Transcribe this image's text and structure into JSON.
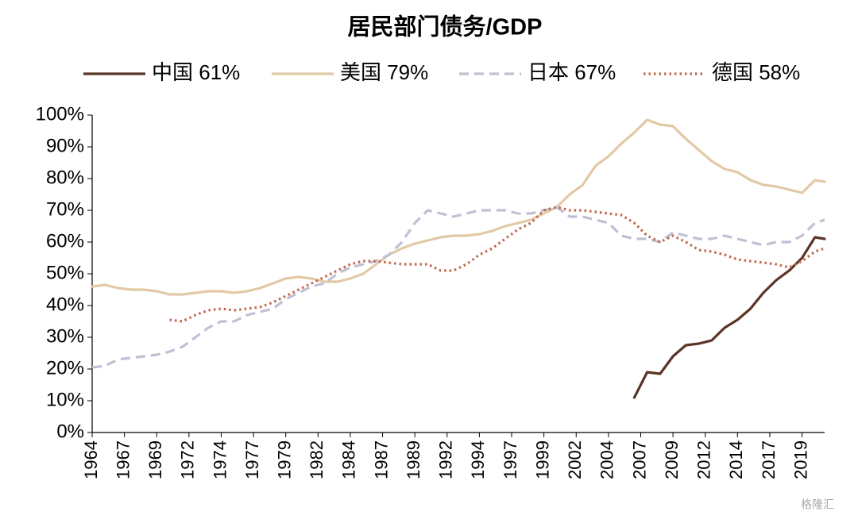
{
  "chart_data": {
    "type": "line",
    "title": "居民部门债务/GDP",
    "x": [
      1964,
      1965,
      1966,
      1967,
      1968,
      1969,
      1970,
      1971,
      1972,
      1973,
      1974,
      1975,
      1976,
      1977,
      1978,
      1979,
      1980,
      1981,
      1982,
      1983,
      1984,
      1985,
      1986,
      1987,
      1988,
      1989,
      1990,
      1991,
      1992,
      1993,
      1994,
      1995,
      1996,
      1997,
      1998,
      1999,
      2000,
      2001,
      2002,
      2003,
      2004,
      2005,
      2006,
      2007,
      2008,
      2009,
      2010,
      2011,
      2012,
      2013,
      2014,
      2015,
      2016,
      2017,
      2018,
      2019,
      2020,
      2020.75
    ],
    "series": [
      {
        "name": "中国  61%",
        "color": "#5b3428",
        "dash": "solid",
        "values": [
          null,
          null,
          null,
          null,
          null,
          null,
          null,
          null,
          null,
          null,
          null,
          null,
          null,
          null,
          null,
          null,
          null,
          null,
          null,
          null,
          null,
          null,
          null,
          null,
          null,
          null,
          null,
          null,
          null,
          null,
          null,
          null,
          null,
          null,
          null,
          null,
          null,
          null,
          null,
          null,
          null,
          null,
          11,
          19,
          18.5,
          24,
          27.5,
          28,
          29,
          33,
          35.5,
          39,
          44,
          48,
          51,
          55,
          61.5,
          61
        ]
      },
      {
        "name": "美国  79%",
        "color": "#e2c9a6",
        "dash": "solid",
        "values": [
          46,
          46.5,
          45.5,
          45,
          45,
          44.5,
          43.5,
          43.5,
          44,
          44.5,
          44.5,
          44,
          44.5,
          45.5,
          47,
          48.5,
          49,
          48.5,
          47.5,
          47.5,
          48.5,
          50,
          53,
          56,
          58,
          59.5,
          60.5,
          61.5,
          62,
          62,
          62.5,
          63.5,
          65,
          66,
          67,
          69,
          71,
          75,
          78,
          84,
          87,
          91,
          94.5,
          98.5,
          97,
          96.5,
          92.5,
          89,
          85.5,
          83,
          82,
          79.5,
          78,
          77.5,
          76.5,
          75.5,
          79.5,
          79
        ]
      },
      {
        "name": "日本  67%",
        "color": "#c0c0d4",
        "dash": "dashed",
        "values": [
          20.5,
          21,
          23,
          23.5,
          24,
          24.5,
          25.5,
          27,
          30,
          33,
          35,
          35,
          37,
          38,
          39,
          42,
          44,
          46,
          47,
          50,
          52,
          53,
          54,
          56,
          60,
          66,
          70,
          69,
          68,
          69,
          70,
          70,
          70,
          69,
          69,
          70,
          71,
          68,
          68,
          67,
          66,
          62,
          61,
          61,
          60,
          63,
          62,
          61,
          61,
          62,
          61,
          60,
          59,
          60,
          60,
          62,
          66,
          67
        ]
      },
      {
        "name": "德国  58%",
        "color": "#c0674d",
        "dash": "dotted",
        "values": [
          null,
          null,
          null,
          null,
          null,
          null,
          35.5,
          35,
          37,
          38.5,
          39,
          38.5,
          39,
          39.5,
          41,
          43,
          45,
          47,
          49,
          51,
          53,
          54,
          54,
          53.5,
          53,
          53,
          53,
          51,
          51,
          53,
          56,
          58,
          61,
          64,
          66,
          70,
          71,
          70,
          70,
          69.5,
          69,
          68.5,
          66,
          62,
          60,
          62,
          60,
          57.5,
          57,
          56,
          54.5,
          54,
          53.5,
          53,
          52,
          54,
          57,
          58
        ]
      }
    ],
    "xlim": [
      1964,
      2020.75
    ],
    "xticks": [
      {
        "value": 1964,
        "label": "1964"
      },
      {
        "value": 1966.5,
        "label": "1967"
      },
      {
        "value": 1969,
        "label": "1969"
      },
      {
        "value": 1971.5,
        "label": "1972"
      },
      {
        "value": 1974,
        "label": "1974"
      },
      {
        "value": 1976.5,
        "label": "1977"
      },
      {
        "value": 1979,
        "label": "1979"
      },
      {
        "value": 1981.5,
        "label": "1982"
      },
      {
        "value": 1984,
        "label": "1984"
      },
      {
        "value": 1986.5,
        "label": "1987"
      },
      {
        "value": 1989,
        "label": "1989"
      },
      {
        "value": 1991.5,
        "label": "1992"
      },
      {
        "value": 1994,
        "label": "1994"
      },
      {
        "value": 1996.5,
        "label": "1997"
      },
      {
        "value": 1999,
        "label": "1999"
      },
      {
        "value": 2001.5,
        "label": "2002"
      },
      {
        "value": 2004,
        "label": "2004"
      },
      {
        "value": 2006.5,
        "label": "2007"
      },
      {
        "value": 2009,
        "label": "2009"
      },
      {
        "value": 2011.5,
        "label": "2012"
      },
      {
        "value": 2014,
        "label": "2014"
      },
      {
        "value": 2016.5,
        "label": "2017"
      },
      {
        "value": 2019,
        "label": "2019"
      }
    ],
    "ylim": [
      0,
      100
    ],
    "yticks": [
      {
        "value": 0,
        "label": "0%"
      },
      {
        "value": 10,
        "label": "10%"
      },
      {
        "value": 20,
        "label": "20%"
      },
      {
        "value": 30,
        "label": "30%"
      },
      {
        "value": 40,
        "label": "40%"
      },
      {
        "value": 50,
        "label": "50%"
      },
      {
        "value": 60,
        "label": "60%"
      },
      {
        "value": 70,
        "label": "70%"
      },
      {
        "value": 80,
        "label": "80%"
      },
      {
        "value": 90,
        "label": "90%"
      },
      {
        "value": 100,
        "label": "100%"
      }
    ],
    "grid": false,
    "legend": "top",
    "watermark": "格隆汇"
  }
}
